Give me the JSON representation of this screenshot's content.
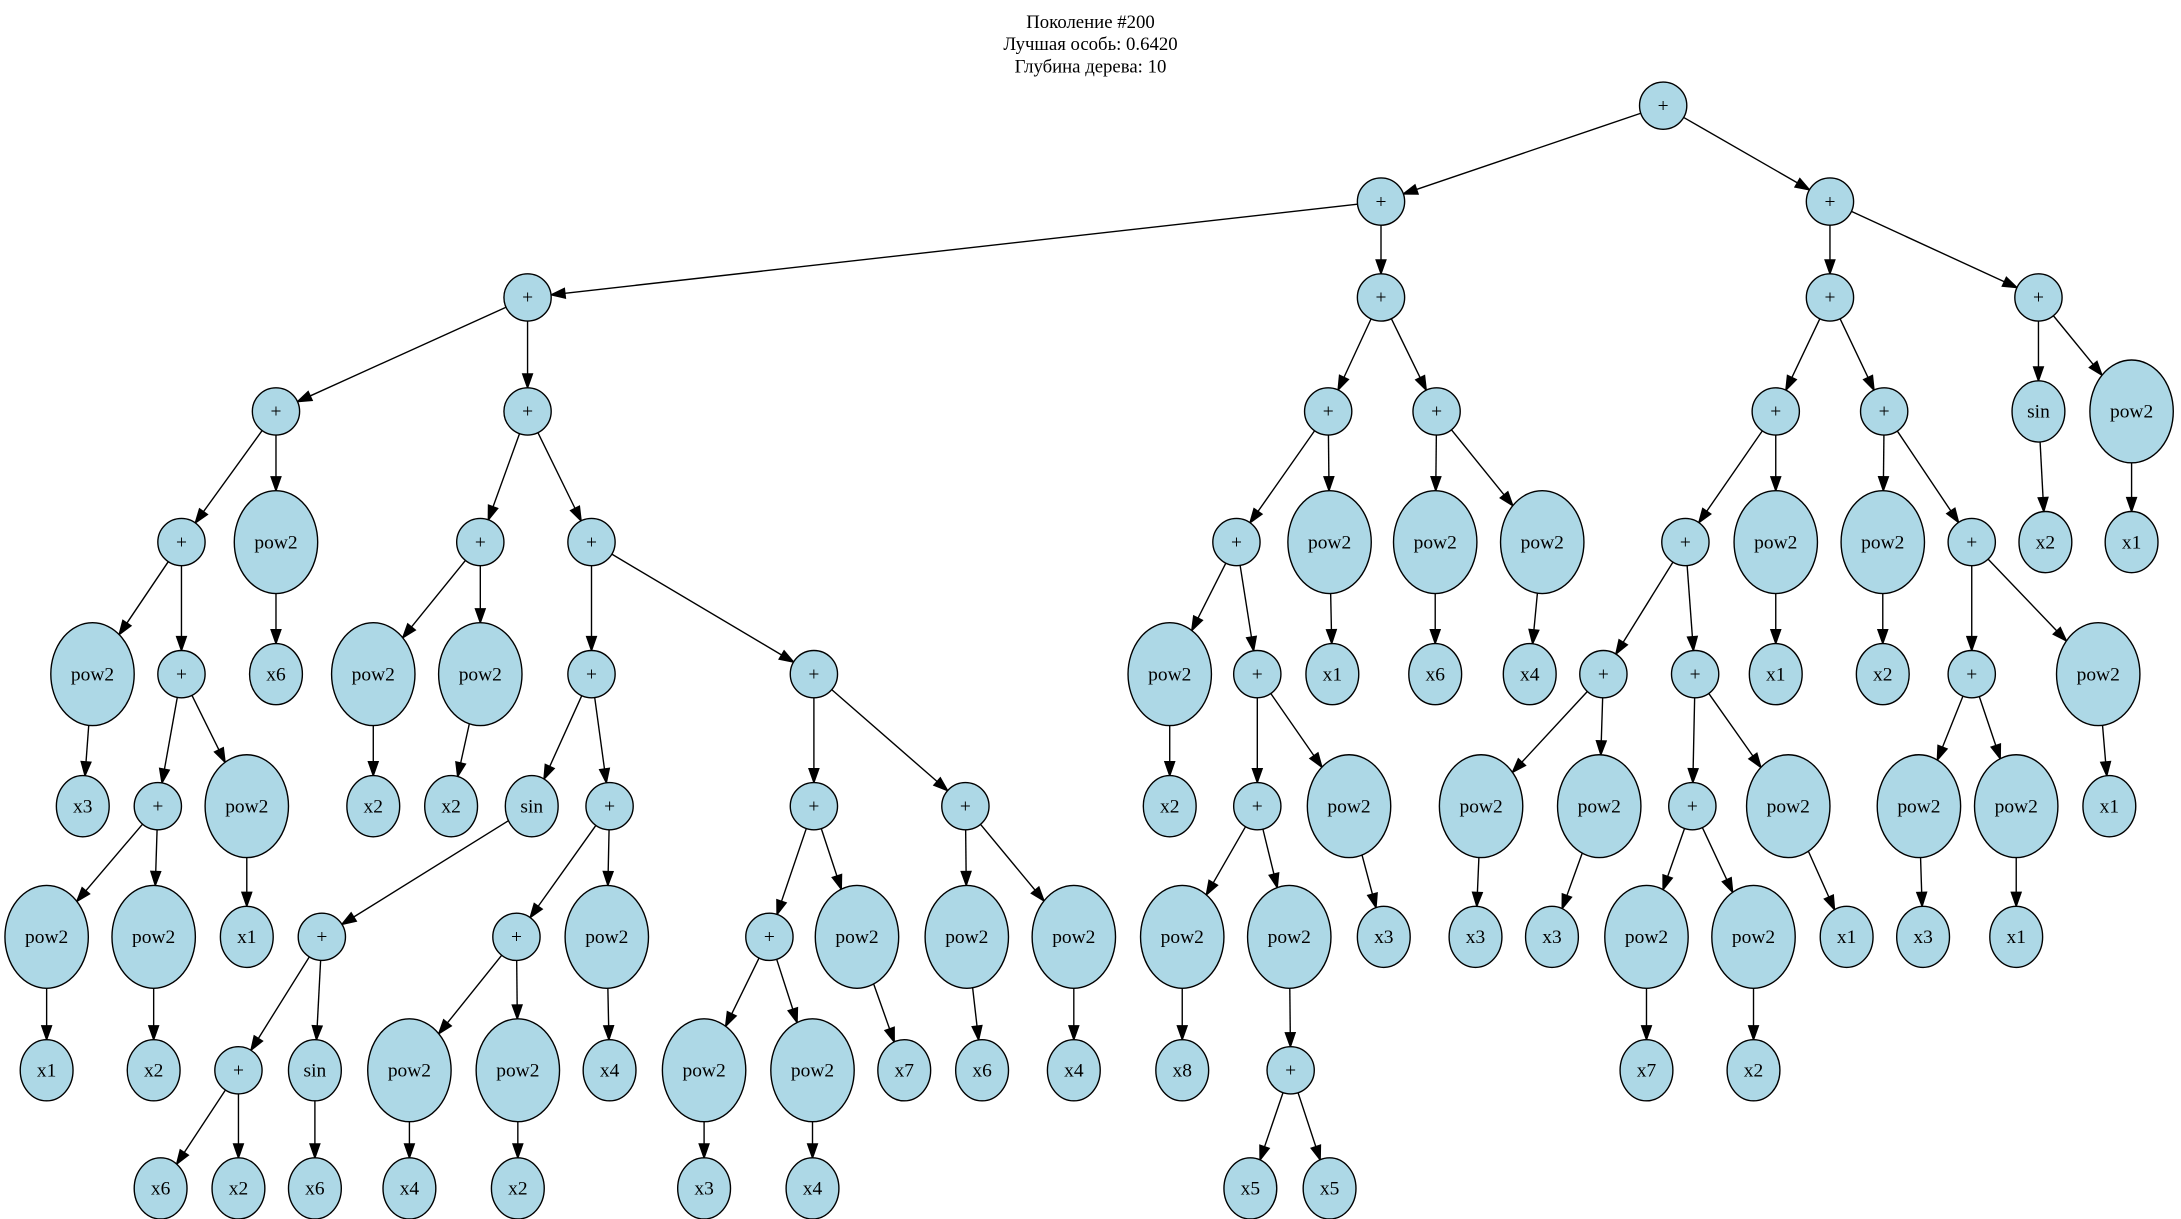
{
  "header": {
    "generation": "Поколение #200",
    "best": "Лучшая особь: 0.6420",
    "depth": "Глубина дерева: 10"
  },
  "colors": {
    "node_fill": "#add8e6",
    "stroke": "#000000"
  },
  "tree": {
    "nodes": [
      {
        "label": "+",
        "parent": null
      },
      {
        "label": "+",
        "parent": 0
      },
      {
        "label": "+",
        "parent": 0
      },
      {
        "label": "+",
        "parent": 1
      },
      {
        "label": "+",
        "parent": 1
      },
      {
        "label": "+",
        "parent": 3
      },
      {
        "label": "+",
        "parent": 3
      },
      {
        "label": "+",
        "parent": 5
      },
      {
        "label": "pow2",
        "parent": 5
      },
      {
        "label": "pow2",
        "parent": 7
      },
      {
        "label": "+",
        "parent": 7
      },
      {
        "label": "x6",
        "parent": 8
      },
      {
        "label": "x3",
        "parent": 9
      },
      {
        "label": "+",
        "parent": 10
      },
      {
        "label": "pow2",
        "parent": 10
      },
      {
        "label": "pow2",
        "parent": 13
      },
      {
        "label": "pow2",
        "parent": 13
      },
      {
        "label": "x1",
        "parent": 14
      },
      {
        "label": "x1",
        "parent": 15
      },
      {
        "label": "x2",
        "parent": 16
      },
      {
        "label": "+",
        "parent": 6
      },
      {
        "label": "+",
        "parent": 6
      },
      {
        "label": "pow2",
        "parent": 20
      },
      {
        "label": "pow2",
        "parent": 20
      },
      {
        "label": "x2",
        "parent": 22
      },
      {
        "label": "x2",
        "parent": 23
      },
      {
        "label": "+",
        "parent": 21
      },
      {
        "label": "+",
        "parent": 21
      },
      {
        "label": "sin",
        "parent": 26
      },
      {
        "label": "+",
        "parent": 26
      },
      {
        "label": "+",
        "parent": 28
      },
      {
        "label": "+",
        "parent": 30
      },
      {
        "label": "sin",
        "parent": 30
      },
      {
        "label": "x6",
        "parent": 31
      },
      {
        "label": "x2",
        "parent": 31
      },
      {
        "label": "x6",
        "parent": 32
      },
      {
        "label": "+",
        "parent": 29
      },
      {
        "label": "pow2",
        "parent": 29
      },
      {
        "label": "pow2",
        "parent": 36
      },
      {
        "label": "pow2",
        "parent": 36
      },
      {
        "label": "x4",
        "parent": 38
      },
      {
        "label": "x2",
        "parent": 39
      },
      {
        "label": "x4",
        "parent": 37
      },
      {
        "label": "+",
        "parent": 27
      },
      {
        "label": "+",
        "parent": 27
      },
      {
        "label": "+",
        "parent": 43
      },
      {
        "label": "pow2",
        "parent": 43
      },
      {
        "label": "pow2",
        "parent": 45
      },
      {
        "label": "pow2",
        "parent": 45
      },
      {
        "label": "x3",
        "parent": 47
      },
      {
        "label": "x4",
        "parent": 48
      },
      {
        "label": "x7",
        "parent": 46
      },
      {
        "label": "pow2",
        "parent": 44
      },
      {
        "label": "pow2",
        "parent": 44
      },
      {
        "label": "x6",
        "parent": 52
      },
      {
        "label": "x4",
        "parent": 53
      },
      {
        "label": "+",
        "parent": 4
      },
      {
        "label": "+",
        "parent": 4
      },
      {
        "label": "+",
        "parent": 56
      },
      {
        "label": "pow2",
        "parent": 56
      },
      {
        "label": "pow2",
        "parent": 58
      },
      {
        "label": "+",
        "parent": 58
      },
      {
        "label": "x2",
        "parent": 60
      },
      {
        "label": "+",
        "parent": 61
      },
      {
        "label": "pow2",
        "parent": 61
      },
      {
        "label": "pow2",
        "parent": 63
      },
      {
        "label": "pow2",
        "parent": 63
      },
      {
        "label": "x8",
        "parent": 65
      },
      {
        "label": "+",
        "parent": 66
      },
      {
        "label": "x5",
        "parent": 68
      },
      {
        "label": "x5",
        "parent": 68
      },
      {
        "label": "x3",
        "parent": 64
      },
      {
        "label": "x1",
        "parent": 59
      },
      {
        "label": "pow2",
        "parent": 57
      },
      {
        "label": "pow2",
        "parent": 57
      },
      {
        "label": "x6",
        "parent": 73
      },
      {
        "label": "x4",
        "parent": 74
      },
      {
        "label": "+",
        "parent": 2
      },
      {
        "label": "+",
        "parent": 2
      },
      {
        "label": "+",
        "parent": 77
      },
      {
        "label": "+",
        "parent": 77
      },
      {
        "label": "+",
        "parent": 79
      },
      {
        "label": "pow2",
        "parent": 79
      },
      {
        "label": "+",
        "parent": 81
      },
      {
        "label": "+",
        "parent": 81
      },
      {
        "label": "pow2",
        "parent": 83
      },
      {
        "label": "pow2",
        "parent": 83
      },
      {
        "label": "x3",
        "parent": 85
      },
      {
        "label": "x3",
        "parent": 86
      },
      {
        "label": "+",
        "parent": 84
      },
      {
        "label": "pow2",
        "parent": 84
      },
      {
        "label": "pow2",
        "parent": 89
      },
      {
        "label": "pow2",
        "parent": 89
      },
      {
        "label": "x7",
        "parent": 91
      },
      {
        "label": "x2",
        "parent": 92
      },
      {
        "label": "x1",
        "parent": 90
      },
      {
        "label": "x1",
        "parent": 82
      },
      {
        "label": "pow2",
        "parent": 80
      },
      {
        "label": "+",
        "parent": 80
      },
      {
        "label": "x2",
        "parent": 97
      },
      {
        "label": "+",
        "parent": 98
      },
      {
        "label": "pow2",
        "parent": 98
      },
      {
        "label": "pow2",
        "parent": 100
      },
      {
        "label": "pow2",
        "parent": 100
      },
      {
        "label": "x3",
        "parent": 102
      },
      {
        "label": "x1",
        "parent": 103
      },
      {
        "label": "x1",
        "parent": 101
      },
      {
        "label": "sin",
        "parent": 78
      },
      {
        "label": "pow2",
        "parent": 78
      },
      {
        "label": "x2",
        "parent": 107
      },
      {
        "label": "x1",
        "parent": 108
      }
    ]
  }
}
